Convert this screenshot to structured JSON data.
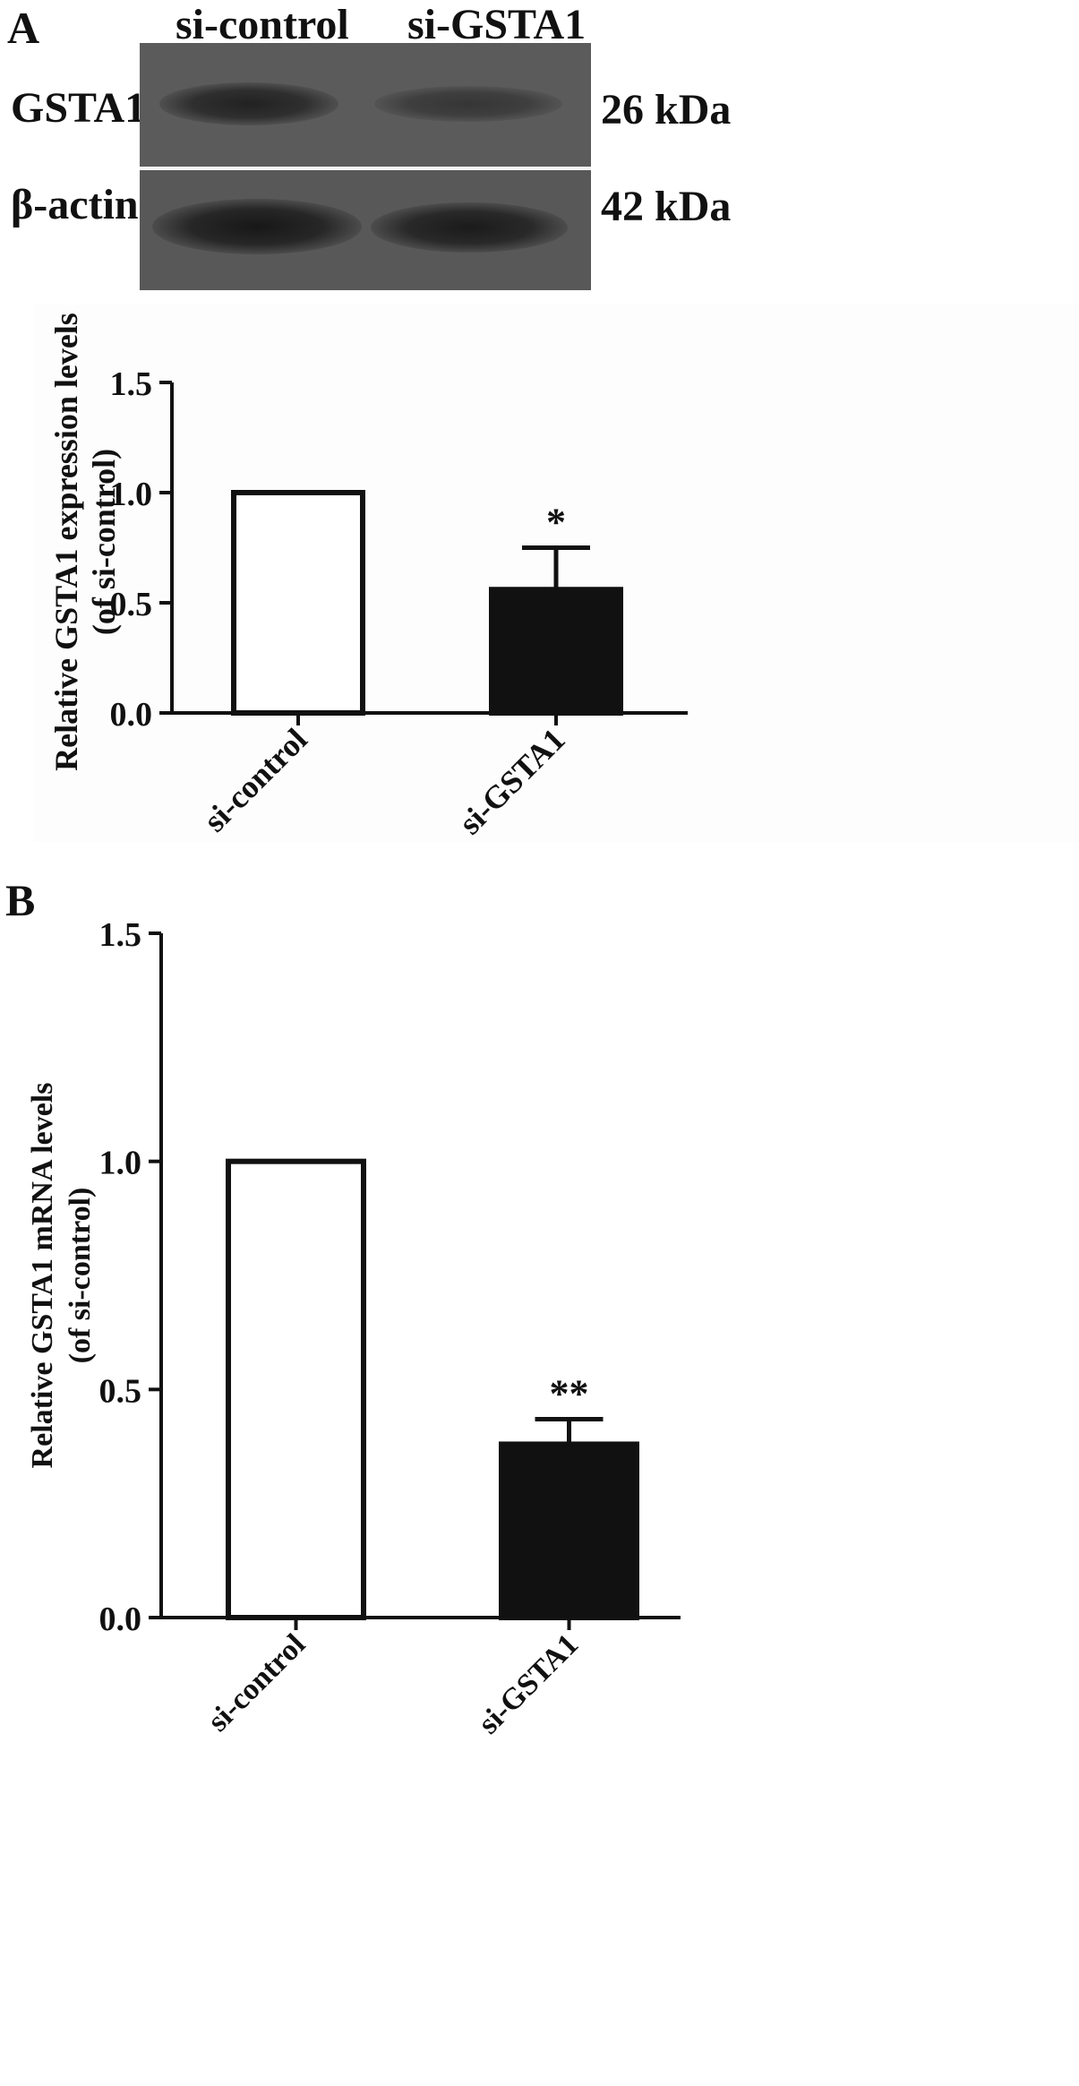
{
  "panel_a": {
    "letter": "A",
    "blot": {
      "lane_labels": [
        "si-control",
        "si-GSTA1"
      ],
      "rows": [
        {
          "protein": "GSTA1",
          "size": "26 kDa",
          "band_intensity": [
            0.85,
            0.55
          ]
        },
        {
          "protein": "β-actin",
          "size": "42 kDa",
          "band_intensity": [
            1.0,
            0.95
          ]
        }
      ]
    }
  },
  "panel_b": {
    "letter": "B"
  },
  "chart_data": [
    {
      "type": "bar",
      "categories": [
        "si-control",
        "si-GSTA1"
      ],
      "values": [
        1.0,
        0.56
      ],
      "error_upper": [
        0,
        0.19
      ],
      "significance": [
        "",
        "*"
      ],
      "bar_colors": [
        "#ffffff",
        "#111111"
      ],
      "ylabel_line1": "Relative GSTA1 expression levels",
      "ylabel_line2": "(of si-control)",
      "ylim": [
        0,
        1.5
      ],
      "yticks": [
        "0.0",
        "0.5",
        "1.0",
        "1.5"
      ],
      "ytick_values": [
        0,
        0.5,
        1.0,
        1.5
      ]
    },
    {
      "type": "bar",
      "categories": [
        "si-control",
        "si-GSTA1"
      ],
      "values": [
        1.0,
        0.38
      ],
      "error_upper": [
        0,
        0.055
      ],
      "significance": [
        "",
        "**"
      ],
      "bar_colors": [
        "#ffffff",
        "#111111"
      ],
      "ylabel_line1": "Relative GSTA1 mRNA levels",
      "ylabel_line2": "(of si-control)",
      "ylim": [
        0,
        1.5
      ],
      "yticks": [
        "0.0",
        "0.5",
        "1.0",
        "1.5"
      ],
      "ytick_values": [
        0,
        0.5,
        1.0,
        1.5
      ]
    }
  ]
}
